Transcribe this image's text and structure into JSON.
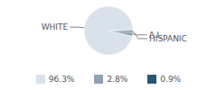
{
  "chart_data": {
    "type": "pie",
    "categories": [
      "WHITE",
      "A.I.",
      "HISPANIC"
    ],
    "values": [
      96.3,
      2.8,
      0.9
    ],
    "value_labels": [
      "96.3%",
      "2.8%",
      "0.9%"
    ],
    "colors": [
      "#d9e1ea",
      "#8fa3b8",
      "#2a5675"
    ],
    "legend": "bottom"
  }
}
